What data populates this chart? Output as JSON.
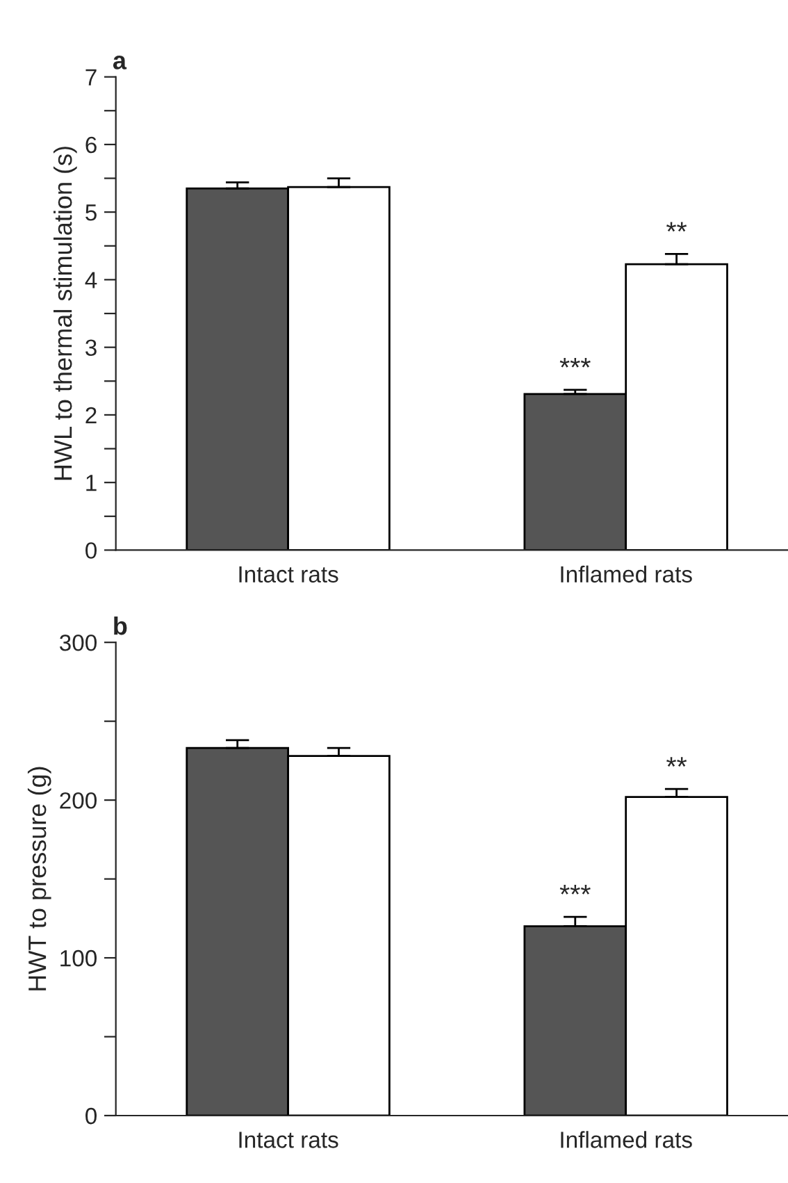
{
  "chart_data": [
    {
      "type": "bar",
      "title": "a",
      "ylabel": "HWL to thermal stimulation (s)",
      "categories": [
        "Intact rats",
        "Inflamed rats"
      ],
      "series": [
        {
          "color": "#555555",
          "values": [
            5.35,
            2.31
          ],
          "errors": [
            0.09,
            0.06
          ]
        },
        {
          "color": "#ffffff",
          "values": [
            5.37,
            4.23
          ],
          "errors": [
            0.13,
            0.15
          ]
        }
      ],
      "ylim": [
        0,
        7
      ],
      "yticks": [
        0,
        {
          "value": 0.5,
          "label": null
        },
        1,
        {
          "value": 1.5,
          "label": null
        },
        2,
        {
          "value": 2.5,
          "label": null
        },
        3,
        {
          "value": 3.5,
          "label": null
        },
        4,
        {
          "value": 4.5,
          "label": null
        },
        5,
        {
          "value": 5.5,
          "label": null
        },
        6,
        {
          "value": 6.5,
          "label": null
        },
        7
      ],
      "annotations": [
        "***",
        "**"
      ],
      "grid": false,
      "legend": false
    },
    {
      "type": "bar",
      "title": "b",
      "ylabel": "HWT to pressure (g)",
      "categories": [
        "Intact rats",
        "Inflamed rats"
      ],
      "series": [
        {
          "color": "#555555",
          "values": [
            233,
            120
          ],
          "errors": [
            5,
            6
          ]
        },
        {
          "color": "#ffffff",
          "values": [
            228,
            202
          ],
          "errors": [
            5,
            5
          ]
        }
      ],
      "ylim": [
        0,
        300
      ],
      "yticks": [
        0,
        {
          "value": 50,
          "label": null
        },
        100,
        {
          "value": 150,
          "label": null
        },
        200,
        {
          "value": 250,
          "label": null
        },
        300
      ],
      "annotations": [
        "***",
        "**"
      ],
      "grid": false,
      "legend": false
    }
  ]
}
